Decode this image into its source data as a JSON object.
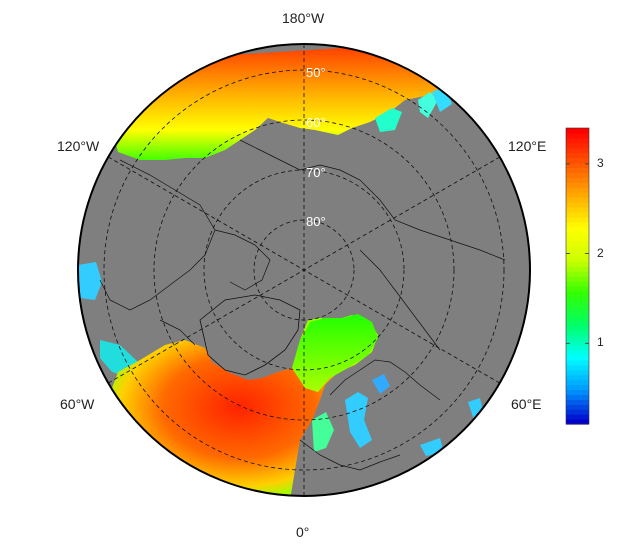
{
  "map": {
    "projection": "north-polar-stereographic",
    "lon_labels": [
      {
        "id": "lon-180w",
        "text": "180°W"
      },
      {
        "id": "lon-120w",
        "text": "120°W"
      },
      {
        "id": "lon-120e",
        "text": "120°E"
      },
      {
        "id": "lon-60w",
        "text": "60°W"
      },
      {
        "id": "lon-60e",
        "text": "60°E"
      },
      {
        "id": "lon-0",
        "text": "0°"
      }
    ],
    "lat_labels": [
      {
        "id": "lat-50",
        "text": "50°"
      },
      {
        "id": "lat-60",
        "text": "60°"
      },
      {
        "id": "lat-70",
        "text": "70°"
      },
      {
        "id": "lat-80",
        "text": "80°"
      }
    ],
    "colors": {
      "land": "#7f7f7f",
      "graticule": "#111111",
      "high": "#ff2a00",
      "mid": "#ffff00",
      "low": "#00ff00",
      "cold": "#00e5ff"
    }
  },
  "colorbar": {
    "ticks": [
      "1",
      "2",
      "3"
    ],
    "tick_values": [
      1,
      2,
      3
    ],
    "min": 0.1,
    "max": 3.4,
    "palette": [
      "#0000cc",
      "#0099ff",
      "#00ffff",
      "#00ff66",
      "#33ff00",
      "#ccff00",
      "#ffff00",
      "#ffaa00",
      "#ff5500",
      "#ff0000"
    ]
  }
}
